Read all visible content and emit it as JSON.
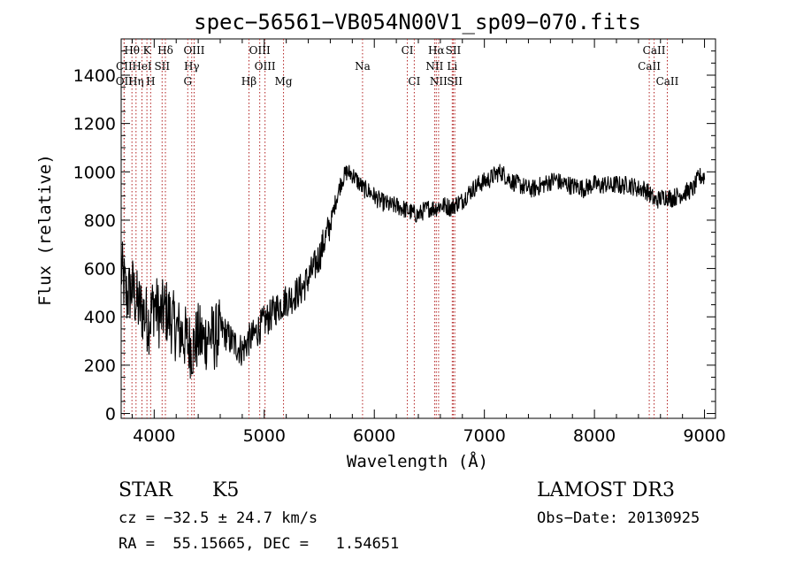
{
  "chart_data": {
    "type": "line",
    "title": "spec−56561−VB054N00V1_sp09−070.fits",
    "xlabel": "Wavelength (Å)",
    "ylabel": "Flux (relative)",
    "xlim": [
      3700,
      9100
    ],
    "ylim": [
      -20,
      1550
    ],
    "x_ticks": [
      4000,
      5000,
      6000,
      7000,
      8000,
      9000
    ],
    "y_ticks": [
      0,
      200,
      400,
      600,
      800,
      1000,
      1200,
      1400
    ],
    "grid": false,
    "series": [
      {
        "name": "spectrum",
        "color": "#000000",
        "x": [
          3700,
          3750,
          3800,
          3850,
          3900,
          3950,
          4000,
          4050,
          4100,
          4150,
          4200,
          4250,
          4300,
          4350,
          4400,
          4450,
          4500,
          4550,
          4600,
          4650,
          4700,
          4750,
          4800,
          4850,
          4900,
          4950,
          5000,
          5050,
          5100,
          5150,
          5200,
          5250,
          5300,
          5350,
          5400,
          5450,
          5500,
          5550,
          5600,
          5650,
          5700,
          5750,
          5800,
          5850,
          5900,
          5950,
          6000,
          6050,
          6100,
          6150,
          6200,
          6250,
          6300,
          6350,
          6400,
          6450,
          6500,
          6550,
          6600,
          6650,
          6700,
          6750,
          6800,
          6850,
          6900,
          6950,
          7000,
          7050,
          7100,
          7150,
          7200,
          7250,
          7300,
          7350,
          7400,
          7450,
          7500,
          7550,
          7600,
          7650,
          7700,
          7750,
          7800,
          7850,
          7900,
          7950,
          8000,
          8050,
          8100,
          8150,
          8200,
          8250,
          8300,
          8350,
          8400,
          8450,
          8500,
          8550,
          8600,
          8650,
          8700,
          8750,
          8800,
          8850,
          8900,
          8950,
          9000
        ],
        "y": [
          600,
          480,
          520,
          450,
          420,
          380,
          460,
          400,
          430,
          390,
          350,
          330,
          300,
          270,
          320,
          300,
          330,
          310,
          350,
          330,
          300,
          280,
          260,
          300,
          320,
          350,
          380,
          400,
          430,
          450,
          470,
          480,
          500,
          520,
          560,
          600,
          650,
          720,
          780,
          880,
          960,
          1000,
          990,
          960,
          930,
          920,
          900,
          880,
          870,
          860,
          860,
          850,
          840,
          830,
          820,
          840,
          850,
          850,
          860,
          860,
          850,
          870,
          880,
          910,
          930,
          950,
          960,
          970,
          990,
          1000,
          980,
          960,
          950,
          940,
          930,
          930,
          940,
          950,
          960,
          970,
          950,
          950,
          940,
          940,
          930,
          940,
          950,
          940,
          950,
          940,
          950,
          940,
          950,
          940,
          930,
          930,
          910,
          880,
          890,
          900,
          890,
          900,
          910,
          920,
          930,
          980,
          980
        ]
      }
    ],
    "spectral_lines": [
      {
        "label": "Hθ",
        "x": 3798,
        "row": 0
      },
      {
        "label": "K",
        "x": 3934,
        "row": 0
      },
      {
        "label": "Hδ",
        "x": 4102,
        "row": 0
      },
      {
        "label": "OIII",
        "x": 4363,
        "row": 0
      },
      {
        "label": "OIII",
        "x": 4959,
        "row": 0
      },
      {
        "label": "CI",
        "x": 6300,
        "row": 0
      },
      {
        "label": "Hα",
        "x": 6563,
        "row": 0
      },
      {
        "label": "SII",
        "x": 6717,
        "row": 0
      },
      {
        "label": "CaII",
        "x": 8542,
        "row": 0
      },
      {
        "label": "CII",
        "x": 3727,
        "row": 1
      },
      {
        "label": "HeI",
        "x": 3889,
        "row": 1
      },
      {
        "label": "SII",
        "x": 4072,
        "row": 1
      },
      {
        "label": "Hγ",
        "x": 4341,
        "row": 1
      },
      {
        "label": "OIII",
        "x": 5007,
        "row": 1
      },
      {
        "label": "Na",
        "x": 5893,
        "row": 1
      },
      {
        "label": "NII",
        "x": 6548,
        "row": 1
      },
      {
        "label": "Li",
        "x": 6708,
        "row": 1
      },
      {
        "label": "CaII",
        "x": 8498,
        "row": 1
      },
      {
        "label": "OII",
        "x": 3727,
        "row": 2
      },
      {
        "label": "Hη",
        "x": 3835,
        "row": 2
      },
      {
        "label": "H",
        "x": 3968,
        "row": 2
      },
      {
        "label": "G",
        "x": 4305,
        "row": 2
      },
      {
        "label": "Hβ",
        "x": 4861,
        "row": 2
      },
      {
        "label": "Mg",
        "x": 5175,
        "row": 2
      },
      {
        "label": "CI",
        "x": 6363,
        "row": 2
      },
      {
        "label": "NII",
        "x": 6584,
        "row": 2
      },
      {
        "label": "SII",
        "x": 6731,
        "row": 2
      },
      {
        "label": "CaII",
        "x": 8662,
        "row": 2
      }
    ],
    "annotations": {
      "object_class": "STAR",
      "subclass": "K5",
      "survey": "LAMOST DR3",
      "cz": "cz = −32.5 ± 24.7 km/s",
      "obs_date": "Obs−Date: 20130925",
      "coords": "RA =  55.15665, DEC =   1.54651"
    },
    "colors": {
      "spectrum": "#000000",
      "line_marker": "#b22222",
      "axis": "#000000"
    }
  }
}
